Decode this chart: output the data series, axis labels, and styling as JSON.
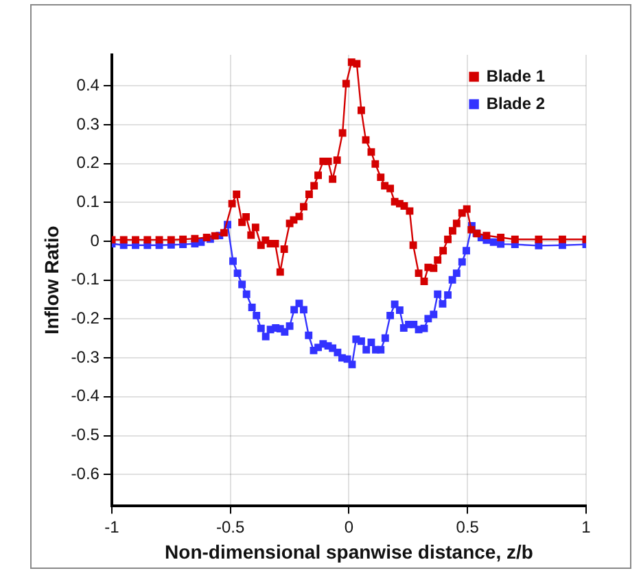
{
  "chart_data": {
    "type": "line",
    "xlabel": "Non-dimensional spanwise distance, z/b",
    "ylabel": "Inflow Ratio",
    "xlim": [
      -1,
      1
    ],
    "xticks": [
      -1,
      -0.5,
      0,
      0.5,
      1
    ],
    "ylim": [
      -0.68,
      0.48
    ],
    "yticks": [
      -0.6,
      -0.5,
      -0.4,
      -0.3,
      -0.2,
      -0.1,
      0,
      0.1,
      0.2,
      0.3,
      0.4
    ],
    "grid": true,
    "legend": "top right",
    "marker": "square",
    "line_style": "solid",
    "series": [
      {
        "name": "Blade 1",
        "color": "#d40000",
        "x": [
          -1,
          -0.95,
          -0.9,
          -0.85,
          -0.8,
          -0.75,
          -0.7,
          -0.65,
          -0.6,
          -0.565,
          -0.527,
          -0.493,
          -0.474,
          -0.451,
          -0.434,
          -0.413,
          -0.394,
          -0.371,
          -0.352,
          -0.331,
          -0.311,
          -0.29,
          -0.273,
          -0.25,
          -0.233,
          -0.21,
          -0.191,
          -0.168,
          -0.147,
          -0.13,
          -0.109,
          -0.088,
          -0.069,
          -0.05,
          -0.027,
          -0.012,
          0.011,
          0.033,
          0.052,
          0.071,
          0.094,
          0.111,
          0.134,
          0.151,
          0.174,
          0.193,
          0.214,
          0.233,
          0.256,
          0.271,
          0.294,
          0.317,
          0.334,
          0.357,
          0.374,
          0.397,
          0.417,
          0.437,
          0.454,
          0.477,
          0.497,
          0.516,
          0.54,
          0.58,
          0.64,
          0.7,
          0.8,
          0.9,
          1
        ],
        "values": [
          0.004,
          0.004,
          0.004,
          0.004,
          0.004,
          0.004,
          0.005,
          0.007,
          0.01,
          0.014,
          0.022,
          0.097,
          0.121,
          0.049,
          0.063,
          0.016,
          0.036,
          -0.01,
          0.003,
          -0.006,
          -0.006,
          -0.079,
          -0.02,
          0.046,
          0.055,
          0.064,
          0.089,
          0.121,
          0.143,
          0.17,
          0.206,
          0.206,
          0.16,
          0.209,
          0.279,
          0.406,
          0.461,
          0.457,
          0.337,
          0.261,
          0.23,
          0.199,
          0.165,
          0.143,
          0.136,
          0.102,
          0.097,
          0.091,
          0.078,
          -0.01,
          -0.082,
          -0.103,
          -0.067,
          -0.069,
          -0.048,
          -0.024,
          0.005,
          0.027,
          0.046,
          0.073,
          0.083,
          0.03,
          0.02,
          0.015,
          0.01,
          0.005,
          0.005,
          0.005,
          0.005
        ]
      },
      {
        "name": "Blade 2",
        "color": "#3333ff",
        "x": [
          -1,
          -0.95,
          -0.9,
          -0.85,
          -0.8,
          -0.75,
          -0.7,
          -0.65,
          -0.624,
          -0.585,
          -0.546,
          -0.512,
          -0.489,
          -0.47,
          -0.451,
          -0.432,
          -0.409,
          -0.39,
          -0.371,
          -0.351,
          -0.331,
          -0.309,
          -0.29,
          -0.271,
          -0.25,
          -0.231,
          -0.21,
          -0.191,
          -0.17,
          -0.149,
          -0.13,
          -0.109,
          -0.088,
          -0.069,
          -0.048,
          -0.029,
          -0.007,
          0.013,
          0.03,
          0.052,
          0.073,
          0.094,
          0.113,
          0.134,
          0.153,
          0.174,
          0.193,
          0.214,
          0.231,
          0.252,
          0.273,
          0.294,
          0.317,
          0.334,
          0.357,
          0.374,
          0.395,
          0.417,
          0.436,
          0.454,
          0.477,
          0.495,
          0.518,
          0.537,
          0.558,
          0.58,
          0.61,
          0.64,
          0.7,
          0.8,
          0.9,
          1
        ],
        "values": [
          -0.006,
          -0.01,
          -0.01,
          -0.01,
          -0.01,
          -0.009,
          -0.008,
          -0.006,
          -0.002,
          0.006,
          0.015,
          0.043,
          -0.051,
          -0.082,
          -0.111,
          -0.136,
          -0.17,
          -0.191,
          -0.224,
          -0.245,
          -0.227,
          -0.223,
          -0.225,
          -0.233,
          -0.218,
          -0.176,
          -0.16,
          -0.176,
          -0.242,
          -0.281,
          -0.273,
          -0.264,
          -0.269,
          -0.275,
          -0.286,
          -0.3,
          -0.303,
          -0.317,
          -0.252,
          -0.257,
          -0.279,
          -0.26,
          -0.279,
          -0.279,
          -0.249,
          -0.191,
          -0.162,
          -0.177,
          -0.223,
          -0.214,
          -0.214,
          -0.227,
          -0.224,
          -0.199,
          -0.188,
          -0.136,
          -0.161,
          -0.138,
          -0.099,
          -0.082,
          -0.053,
          -0.024,
          0.04,
          0.021,
          0.01,
          0.003,
          -0.002,
          -0.007,
          -0.008,
          -0.011,
          -0.01,
          -0.008
        ]
      }
    ]
  }
}
